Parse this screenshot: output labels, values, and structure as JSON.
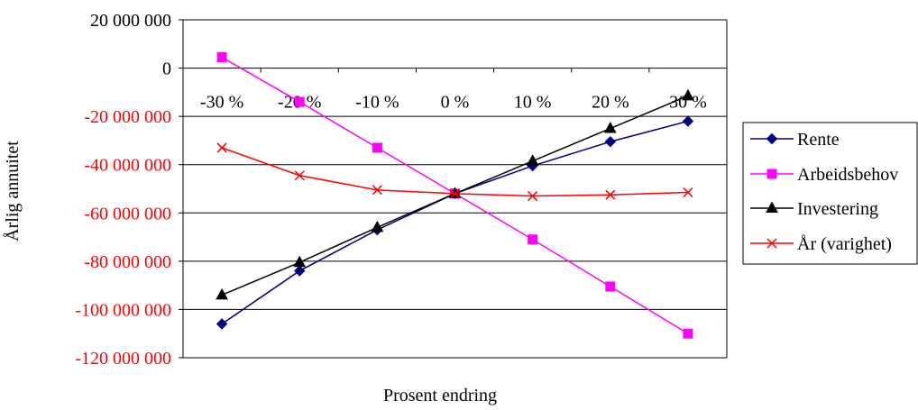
{
  "chart_data": {
    "type": "line",
    "title": "",
    "xlabel": "Prosent endring",
    "ylabel": "Årlig annuitet",
    "categories": [
      "-30 %",
      "-20 %",
      "-10 %",
      "0 %",
      "10 %",
      "20 %",
      "30 %"
    ],
    "ylim": [
      -120000000,
      20000000
    ],
    "yticks": [
      {
        "value": 20000000,
        "label": "20 000 000"
      },
      {
        "value": 0,
        "label": "0"
      },
      {
        "value": -20000000,
        "label": "-20 000 000"
      },
      {
        "value": -40000000,
        "label": "-40 000 000"
      },
      {
        "value": -60000000,
        "label": "-60 000 000"
      },
      {
        "value": -80000000,
        "label": "-80 000 000"
      },
      {
        "value": -100000000,
        "label": "-100 000 000"
      },
      {
        "value": -120000000,
        "label": "-120 000 000"
      }
    ],
    "grid": true,
    "legend_position": "right",
    "series": [
      {
        "name": "Rente",
        "color": "#000080",
        "marker": "diamond",
        "values": [
          -106000000,
          -84000000,
          -67000000,
          -52000000,
          -40500000,
          -30500000,
          -22000000
        ]
      },
      {
        "name": "Arbeidsbehov",
        "color": "#FF00FF",
        "marker": "square",
        "values": [
          4500000,
          -14000000,
          -33000000,
          -52000000,
          -71000000,
          -90500000,
          -110000000
        ]
      },
      {
        "name": "Investering",
        "color": "#000000",
        "marker": "triangle",
        "values": [
          -94000000,
          -80500000,
          -66000000,
          -52000000,
          -38500000,
          -25000000,
          -11500000
        ]
      },
      {
        "name": "År (varighet)",
        "color": "#FF0000",
        "marker": "x",
        "values": [
          -33000000,
          -44500000,
          -50500000,
          -52000000,
          -53000000,
          -52500000,
          -51500000
        ]
      }
    ]
  },
  "colors": {
    "negative_tick": "#FF0000",
    "positive_tick": "#000000",
    "grid": "#000000"
  }
}
